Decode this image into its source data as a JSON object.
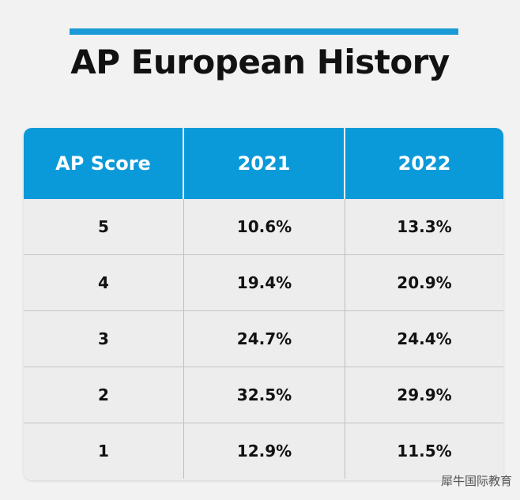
{
  "header": {
    "title": "AP European History"
  },
  "table": {
    "columns": [
      "AP Score",
      "2021",
      "2022"
    ],
    "rows": [
      [
        "5",
        "10.6%",
        "13.3%"
      ],
      [
        "4",
        "19.4%",
        "20.9%"
      ],
      [
        "3",
        "24.7%",
        "24.4%"
      ],
      [
        "2",
        "32.5%",
        "29.9%"
      ],
      [
        "1",
        "12.9%",
        "11.5%"
      ]
    ]
  },
  "watermark": "犀牛国际教育"
}
